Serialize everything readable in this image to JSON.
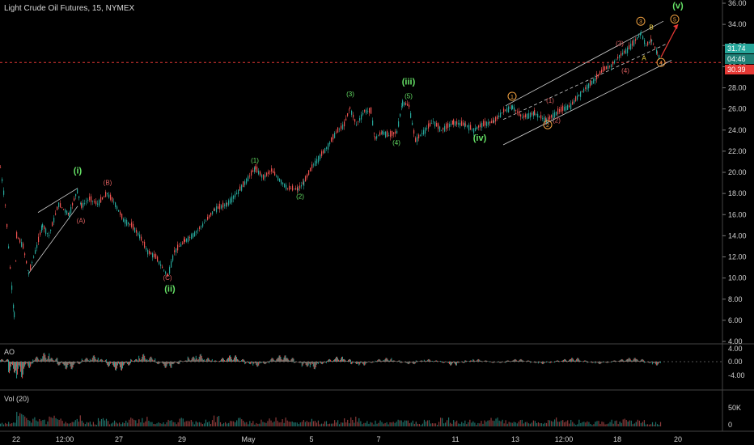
{
  "header": {
    "title": "Light Crude Oil Futures, 15, NYMEX"
  },
  "panes": {
    "ao_label": "AO",
    "vol_label": "Vol (20)"
  },
  "price_tags": {
    "last": "31.74",
    "countdown": "04:46",
    "line": "30.39"
  },
  "colors": {
    "up": "#26a69a",
    "down": "#ef5350",
    "waves_major": "#66e266",
    "waves_minor": "#e06060",
    "waves_orange": "#f0a040",
    "channel": "#d0d0d0"
  },
  "chart_data": {
    "type": "line",
    "ylim": [
      4,
      36
    ],
    "y_ticks": [
      "36.00",
      "34.00",
      "32.00",
      "30.00",
      "28.00",
      "26.00",
      "24.00",
      "22.00",
      "20.00",
      "18.00",
      "16.00",
      "14.00",
      "12.00",
      "10.00",
      "8.00",
      "6.00",
      "4.00"
    ],
    "x_ticks": [
      "22",
      "12:00",
      "27",
      "29",
      "May",
      "5",
      "7",
      "11",
      "13",
      "12:00",
      "18",
      "20"
    ],
    "price_path": [
      [
        0,
        20.5
      ],
      [
        6,
        17
      ],
      [
        12,
        11
      ],
      [
        17,
        6.5
      ],
      [
        20,
        14
      ],
      [
        28,
        13
      ],
      [
        35,
        10.4
      ],
      [
        45,
        13
      ],
      [
        52,
        15
      ],
      [
        60,
        14
      ],
      [
        72,
        17
      ],
      [
        85,
        16
      ],
      [
        95,
        18.3
      ],
      [
        100,
        16.8
      ],
      [
        110,
        17.5
      ],
      [
        120,
        17
      ],
      [
        132,
        18
      ],
      [
        142,
        17
      ],
      [
        152,
        15.5
      ],
      [
        162,
        15
      ],
      [
        172,
        14
      ],
      [
        182,
        12.5
      ],
      [
        192,
        12
      ],
      [
        200,
        11
      ],
      [
        207,
        10.2
      ],
      [
        215,
        12.5
      ],
      [
        228,
        13.5
      ],
      [
        240,
        14.2
      ],
      [
        252,
        15.2
      ],
      [
        265,
        16.5
      ],
      [
        280,
        17
      ],
      [
        292,
        18
      ],
      [
        302,
        19
      ],
      [
        315,
        20.4
      ],
      [
        325,
        19.5
      ],
      [
        335,
        20.2
      ],
      [
        345,
        19.3
      ],
      [
        355,
        18.5
      ],
      [
        368,
        18.4
      ],
      [
        375,
        19
      ],
      [
        385,
        20.5
      ],
      [
        395,
        21.5
      ],
      [
        405,
        22.5
      ],
      [
        415,
        23.8
      ],
      [
        425,
        24.5
      ],
      [
        432,
        26.1
      ],
      [
        440,
        24.5
      ],
      [
        450,
        25.8
      ],
      [
        458,
        25.8
      ],
      [
        463,
        23.2
      ],
      [
        472,
        23.8
      ],
      [
        480,
        23.5
      ],
      [
        490,
        23.8
      ],
      [
        497,
        26.6
      ],
      [
        505,
        26.3
      ],
      [
        513,
        23
      ],
      [
        525,
        24
      ],
      [
        535,
        24.8
      ],
      [
        545,
        24
      ],
      [
        560,
        24.7
      ],
      [
        575,
        24.5
      ],
      [
        585,
        24
      ],
      [
        595,
        24.5
      ],
      [
        610,
        24.8
      ],
      [
        622,
        25.8
      ],
      [
        633,
        26.2
      ],
      [
        645,
        25.2
      ],
      [
        660,
        25.6
      ],
      [
        675,
        24.9
      ],
      [
        685,
        25.5
      ],
      [
        695,
        26
      ],
      [
        705,
        26.3
      ],
      [
        715,
        27.3
      ],
      [
        725,
        28.1
      ],
      [
        735,
        28.8
      ],
      [
        745,
        29.7
      ],
      [
        755,
        30.1
      ],
      [
        765,
        31
      ],
      [
        775,
        31.6
      ],
      [
        785,
        32.5
      ],
      [
        792,
        33.2
      ],
      [
        798,
        32
      ],
      [
        805,
        32.5
      ],
      [
        812,
        31.3
      ],
      [
        816,
        30.6
      ]
    ],
    "wave_labels": [
      {
        "text": "(i)",
        "color": "major",
        "bold": true,
        "x": 96,
        "y": 19.9
      },
      {
        "text": "(ii)",
        "color": "major",
        "bold": true,
        "x": 210,
        "y": 8.7
      },
      {
        "text": "(iii)",
        "color": "major",
        "bold": true,
        "x": 505,
        "y": 28.3
      },
      {
        "text": "(iv)",
        "color": "major",
        "bold": true,
        "x": 593,
        "y": 23.0
      },
      {
        "text": "(v)",
        "color": "major",
        "bold": true,
        "x": 838,
        "y": 35.5
      },
      {
        "text": "(A)",
        "color": "minor",
        "x": 100,
        "y": 15.2
      },
      {
        "text": "(B)",
        "color": "minor",
        "x": 133,
        "y": 18.8
      },
      {
        "text": "(C)",
        "color": "minor",
        "x": 207,
        "y": 9.8
      },
      {
        "text": "(1)",
        "color": "major",
        "x": 315,
        "y": 20.9
      },
      {
        "text": "(2)",
        "color": "major",
        "x": 371,
        "y": 17.5
      },
      {
        "text": "(3)",
        "color": "major",
        "x": 433,
        "y": 27.2
      },
      {
        "text": "(4)",
        "color": "major",
        "x": 490,
        "y": 22.6
      },
      {
        "text": "(5)",
        "color": "major",
        "x": 505,
        "y": 27.0
      },
      {
        "text": "(1)",
        "color": "minor",
        "x": 680,
        "y": 26.6
      },
      {
        "text": "(2)",
        "color": "minor",
        "x": 688,
        "y": 24.7
      },
      {
        "text": "(3)",
        "color": "minor",
        "x": 766,
        "y": 32.0
      },
      {
        "text": "(4)",
        "color": "minor",
        "x": 773,
        "y": 29.4
      },
      {
        "text": "B",
        "color": "yellow",
        "x": 805,
        "y": 33.5
      },
      {
        "text": "A",
        "color": "yellow",
        "x": 796,
        "y": 30.6
      }
    ],
    "circled_labels": [
      {
        "text": "1",
        "x": 633,
        "y": 27.2
      },
      {
        "text": "2",
        "x": 677,
        "y": 24.5
      },
      {
        "text": "3",
        "x": 792,
        "y": 34.3
      },
      {
        "text": "4",
        "x": 817,
        "y": 30.4
      },
      {
        "text": "5",
        "x": 834,
        "y": 34.5
      }
    ],
    "channel_lines": [
      {
        "from": [
          47,
          16.2
        ],
        "to": [
          96,
          18.5
        ],
        "style": "solid"
      },
      {
        "from": [
          35,
          10.4
        ],
        "to": [
          96,
          16.8
        ],
        "style": "solid"
      },
      {
        "from": [
          625,
          26.3
        ],
        "to": [
          820,
          34.3
        ],
        "style": "solid"
      },
      {
        "from": [
          622,
          22.6
        ],
        "to": [
          830,
          30.6
        ],
        "style": "solid"
      },
      {
        "from": [
          622,
          25.0
        ],
        "to": [
          825,
          32.2
        ],
        "style": "dashed"
      }
    ],
    "arrow": {
      "from": [
        817,
        30.9
      ],
      "to": [
        838,
        34.0
      ]
    },
    "ao_bars": [
      0.2,
      -0.9,
      -1.3,
      -0.5,
      0.4,
      0.7,
      0.3,
      -0.3,
      -0.6,
      -0.2,
      0.3,
      0.5,
      0.2,
      -0.4,
      -0.7,
      -0.3,
      0.2,
      0.6,
      0.4,
      -0.2,
      -0.5,
      -0.2,
      0.1,
      0.4,
      0.6,
      0.3,
      0.1,
      0.3,
      0.5,
      0.2,
      -0.2,
      -0.4,
      -0.2,
      0.3,
      0.5,
      0.3,
      -0.1,
      -0.4,
      -0.6,
      -0.2,
      0.2,
      0.4,
      0.2,
      -0.2,
      -0.3,
      -0.1,
      0.2,
      0.3,
      0.1,
      -0.1,
      -0.2,
      0.1,
      0.2,
      0.1,
      -0.1,
      -0.3,
      -0.1,
      0.1,
      0.2,
      0.1,
      -0.1,
      -0.1,
      0.1,
      0.2,
      0.1,
      -0.1,
      -0.2,
      -0.1,
      0.1,
      0.2,
      0.3,
      0.1,
      -0.1,
      -0.2,
      -0.1,
      0.1,
      0.2,
      0.3,
      0.2,
      -0.1,
      -0.3
    ],
    "vol_bars": [
      0.2,
      0.3,
      0.9,
      0.4,
      0.6,
      0.3,
      0.5,
      0.4,
      0.3,
      0.6,
      0.3,
      0.2,
      0.4,
      0.3,
      0.2,
      0.3,
      0.4,
      0.5,
      0.3,
      0.2,
      0.3,
      0.2,
      0.4,
      0.3,
      0.2,
      0.3,
      0.5,
      0.2,
      0.3,
      0.4,
      0.3,
      0.2,
      0.3,
      0.5,
      0.4,
      0.3,
      0.2,
      0.3,
      0.4,
      0.3,
      0.2,
      0.3,
      0.4,
      0.5,
      0.3,
      0.2,
      0.3,
      0.2,
      0.3,
      0.4,
      0.3,
      0.2,
      0.3,
      0.2,
      0.4,
      0.3,
      0.2,
      0.3,
      0.2,
      0.3,
      0.4,
      0.3,
      0.2,
      0.3,
      0.2,
      0.3,
      0.2,
      0.3,
      0.4,
      0.3,
      0.2,
      0.3,
      0.2,
      0.3,
      0.2,
      0.3,
      0.4,
      0.3,
      0.3,
      0.2,
      0.2
    ],
    "ao_ticks": [
      "4.00",
      "0.00",
      "-4.00"
    ],
    "vol_ticks": [
      "50K",
      "0"
    ]
  }
}
